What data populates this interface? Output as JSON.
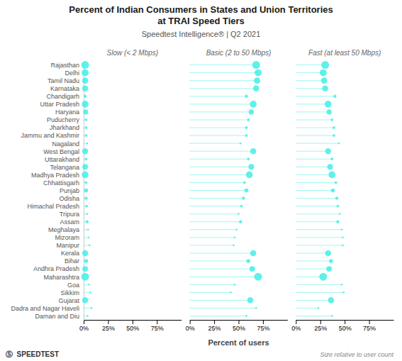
{
  "chart_data": {
    "type": "dot",
    "orientation": "horizontal",
    "title": [
      "Percent of Indian Consumers in States and Union Territories",
      "at TRAI Speed Tiers"
    ],
    "subtitle": "Speedtest Intelligence® | Q2 2021",
    "xlabel": "Percent of users",
    "annotations": [
      "Size relative to user count",
      "Ⓢ  SPEEDTEST"
    ],
    "categories": [
      "Rajasthan",
      "Delhi",
      "Tamil Nadu",
      "Karnataka",
      "Chandigarh",
      "Uttar Pradesh",
      "Haryana",
      "Puducherry",
      "Jharkhand",
      "Jammu and Kashmir",
      "Nagaland",
      "West Bengal",
      "Uttarakhand",
      "Telangana",
      "Madhya Pradesh",
      "Chhattisgarh",
      "Punjab",
      "Odisha",
      "Himachal Pradesh",
      "Tripura",
      "Assam",
      "Meghalaya",
      "Mizoram",
      "Manipur",
      "Kerala",
      "Bihar",
      "Andhra Pradesh",
      "Maharashtra",
      "Goa",
      "Sikkim",
      "Gujarat",
      "Dadra and Nagar Haveli",
      "Daman and Diu"
    ],
    "series": [
      {
        "name": "Slow (< 2 Mbps)",
        "color": "#4df0e8",
        "values": [
          1.5,
          1.5,
          1.5,
          1.5,
          1.5,
          1.5,
          2.0,
          2.5,
          2.5,
          2.5,
          3.5,
          1.5,
          2.5,
          1.5,
          1.5,
          2.5,
          2.5,
          2.5,
          3.0,
          3.5,
          3.5,
          4.5,
          5.0,
          6.0,
          1.5,
          2.5,
          1.5,
          1.5,
          5.5,
          7.0,
          1.5,
          8.0,
          4.0
        ],
        "sizes": [
          500,
          400,
          320,
          280,
          80,
          380,
          220,
          60,
          60,
          60,
          30,
          300,
          60,
          260,
          380,
          60,
          130,
          80,
          60,
          30,
          80,
          30,
          30,
          30,
          300,
          130,
          260,
          500,
          30,
          30,
          300,
          30,
          30
        ]
      },
      {
        "name": "Basic (2 to 50 Mbps)",
        "color": "#4df0e8",
        "values": [
          68,
          70,
          69,
          68,
          58,
          65,
          63,
          60,
          58,
          58,
          52,
          65,
          60,
          63,
          61,
          56,
          58,
          55,
          53,
          50,
          52,
          48,
          46,
          45,
          65,
          60,
          64,
          70,
          46,
          42,
          62,
          68,
          58
        ],
        "sizes": [
          500,
          400,
          320,
          280,
          80,
          380,
          220,
          60,
          60,
          60,
          30,
          300,
          60,
          260,
          380,
          60,
          130,
          80,
          60,
          30,
          80,
          30,
          30,
          30,
          300,
          130,
          260,
          500,
          30,
          30,
          300,
          30,
          30
        ]
      },
      {
        "name": "Fast (at least 50 Mbps)",
        "color": "#4df0e8",
        "values": [
          30,
          28,
          29,
          30,
          40,
          33,
          34,
          37,
          39,
          39,
          44,
          33,
          37,
          35,
          37,
          41,
          38,
          42,
          43,
          45,
          43,
          47,
          48,
          48,
          33,
          36,
          34,
          28,
          47,
          49,
          36,
          23,
          37
        ],
        "sizes": [
          500,
          400,
          320,
          280,
          80,
          380,
          220,
          60,
          60,
          60,
          30,
          300,
          60,
          260,
          380,
          60,
          130,
          80,
          60,
          30,
          80,
          30,
          30,
          30,
          300,
          130,
          260,
          500,
          30,
          30,
          300,
          30,
          30
        ]
      }
    ],
    "xlim": [
      0,
      100
    ],
    "xticks": [
      {
        "value": 0,
        "label": "0%"
      },
      {
        "value": 25,
        "label": "25%"
      },
      {
        "value": 50,
        "label": "50%"
      },
      {
        "value": 75,
        "label": "75%"
      }
    ]
  }
}
